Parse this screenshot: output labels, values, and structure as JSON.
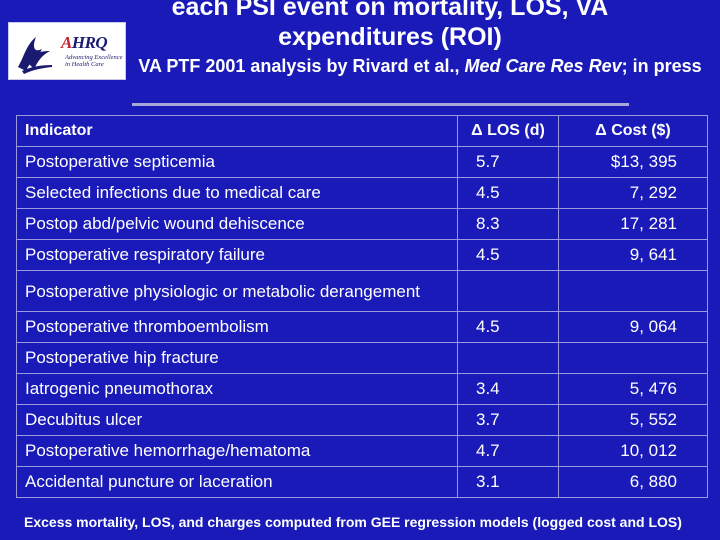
{
  "header": {
    "title": "each PSI event on mortality, LOS, VA expenditures (ROI)",
    "subtitle_pre": "VA PTF 2001 analysis by Rivard et al., ",
    "subtitle_italic": "Med Care Res Rev",
    "subtitle_post": "; in press"
  },
  "logo": {
    "name": "AHRQ",
    "tagline": "Advancing Excellence in Health Care"
  },
  "table": {
    "headers": {
      "indicator": "Indicator",
      "los": "Δ LOS (d)",
      "cost": "Δ Cost ($)"
    },
    "rows": [
      {
        "indicator": "Postoperative septicemia",
        "los": "5.7",
        "cost": "$13, 395"
      },
      {
        "indicator": "Selected infections due to medical care",
        "los": "4.5",
        "cost": "7, 292"
      },
      {
        "indicator": "Postop abd/pelvic wound dehiscence",
        "los": "8.3",
        "cost": "17, 281"
      },
      {
        "indicator": "Postoperative respiratory failure",
        "los": "4.5",
        "cost": "9, 641"
      },
      {
        "indicator": "Postoperative physiologic or metabolic derangement",
        "los": "",
        "cost": ""
      },
      {
        "indicator": "Postoperative thromboembolism",
        "los": "4.5",
        "cost": "9, 064"
      },
      {
        "indicator": "Postoperative hip fracture",
        "los": "",
        "cost": ""
      },
      {
        "indicator": "Iatrogenic pneumothorax",
        "los": "3.4",
        "cost": "5, 476"
      },
      {
        "indicator": "Decubitus ulcer",
        "los": "3.7",
        "cost": "5, 552"
      },
      {
        "indicator": "Postoperative hemorrhage/hematoma",
        "los": "4.7",
        "cost": "10, 012"
      },
      {
        "indicator": "Accidental puncture or laceration",
        "los": "3.1",
        "cost": "6, 880"
      }
    ]
  },
  "footnote": "Excess mortality, LOS, and charges computed from GEE regression models (logged cost and LOS)"
}
